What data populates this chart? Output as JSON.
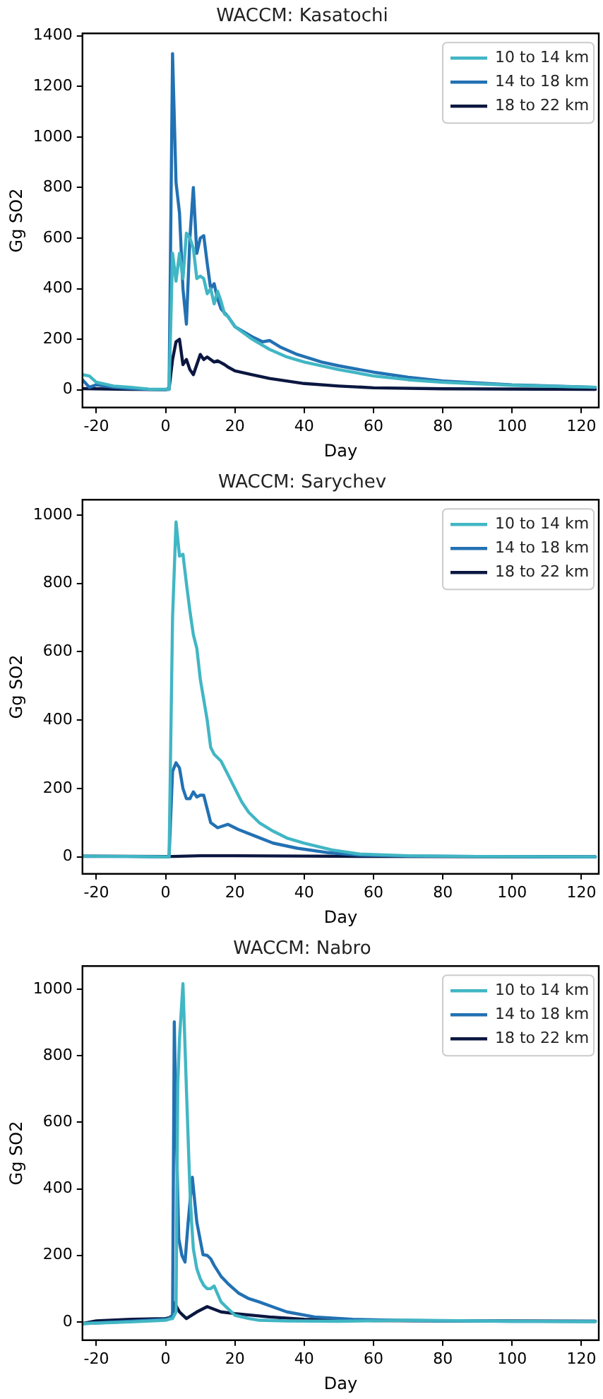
{
  "chart_data": [
    {
      "type": "line",
      "title": "WACCM: Kasatochi",
      "xlabel": "Day",
      "ylabel": "Gg SO2",
      "xlim": [
        -24,
        125
      ],
      "xticks": [
        -20,
        0,
        20,
        40,
        60,
        80,
        100,
        120
      ],
      "ylim": [
        -70,
        1410
      ],
      "yticks": [
        0,
        200,
        400,
        600,
        800,
        1000,
        1200,
        1400
      ],
      "legend": "top right",
      "marker": "none",
      "line_style": "solid",
      "series": [
        {
          "name": "10 to 14 km",
          "color": "#41b6c4",
          "x": [
            -24,
            -22,
            -20,
            -15,
            -10,
            -5,
            0,
            1,
            2,
            3,
            4,
            5,
            6,
            7,
            8,
            9,
            10,
            11,
            12,
            13,
            14,
            15,
            16,
            17,
            18,
            20,
            25,
            30,
            35,
            40,
            50,
            60,
            70,
            80,
            100,
            124
          ],
          "values": [
            60,
            55,
            30,
            15,
            10,
            3,
            2,
            2,
            540,
            430,
            540,
            440,
            620,
            600,
            560,
            440,
            450,
            440,
            380,
            400,
            340,
            390,
            350,
            300,
            290,
            250,
            200,
            160,
            130,
            110,
            80,
            55,
            40,
            30,
            18,
            10
          ]
        },
        {
          "name": "14 to 18 km",
          "color": "#2271b3",
          "x": [
            -24,
            -22,
            -20,
            -15,
            -10,
            -5,
            0,
            1,
            2,
            3,
            4,
            5,
            6,
            7,
            8,
            9,
            10,
            11,
            12,
            13,
            14,
            15,
            16,
            18,
            20,
            25,
            28,
            30,
            33,
            38,
            45,
            50,
            60,
            70,
            80,
            100,
            124
          ],
          "values": [
            40,
            10,
            20,
            10,
            5,
            2,
            1,
            2,
            1330,
            820,
            700,
            400,
            260,
            600,
            800,
            540,
            600,
            610,
            500,
            400,
            420,
            360,
            320,
            290,
            250,
            210,
            190,
            195,
            170,
            140,
            110,
            95,
            70,
            50,
            35,
            20,
            10
          ]
        },
        {
          "name": "18 to 22 km",
          "color": "#0b1740",
          "x": [
            -24,
            -10,
            0,
            1,
            2,
            3,
            4,
            5,
            6,
            7,
            8,
            9,
            10,
            11,
            12,
            14,
            15,
            17,
            18,
            20,
            25,
            30,
            40,
            50,
            60,
            80,
            124
          ],
          "values": [
            5,
            2,
            1,
            5,
            120,
            190,
            200,
            100,
            120,
            80,
            60,
            100,
            140,
            120,
            130,
            110,
            115,
            100,
            90,
            75,
            60,
            45,
            25,
            15,
            8,
            4,
            2
          ]
        }
      ]
    },
    {
      "type": "line",
      "title": "WACCM: Sarychev",
      "xlabel": "Day",
      "ylabel": "Gg SO2",
      "xlim": [
        -24,
        125
      ],
      "xticks": [
        -20,
        0,
        20,
        40,
        60,
        80,
        100,
        120
      ],
      "ylim": [
        -50,
        1045
      ],
      "yticks": [
        0,
        200,
        400,
        600,
        800,
        1000
      ],
      "legend": "top right",
      "marker": "none",
      "line_style": "solid",
      "series": [
        {
          "name": "10 to 14 km",
          "color": "#41b6c4",
          "x": [
            -24,
            -10,
            0,
            1,
            2,
            3,
            4,
            5,
            6,
            7,
            8,
            9,
            10,
            11,
            12,
            13,
            14,
            16,
            18,
            20,
            22,
            24,
            27,
            31,
            35,
            40,
            48,
            56,
            70,
            90,
            124
          ],
          "values": [
            2,
            1,
            0,
            0,
            700,
            980,
            880,
            885,
            800,
            720,
            650,
            610,
            520,
            460,
            400,
            320,
            300,
            280,
            240,
            200,
            160,
            130,
            100,
            75,
            55,
            40,
            20,
            8,
            3,
            1,
            0
          ]
        },
        {
          "name": "14 to 18 km",
          "color": "#2271b3",
          "x": [
            -24,
            -10,
            0,
            1,
            2,
            3,
            4,
            5,
            6,
            7,
            8,
            9,
            10,
            11,
            12,
            13,
            15,
            18,
            21,
            26,
            31,
            38,
            47,
            56,
            70,
            90,
            124
          ],
          "values": [
            1,
            1,
            0,
            0,
            250,
            275,
            260,
            200,
            170,
            170,
            190,
            175,
            180,
            180,
            140,
            100,
            85,
            95,
            80,
            60,
            40,
            25,
            12,
            5,
            2,
            1,
            0
          ]
        },
        {
          "name": "18 to 22 km",
          "color": "#0b1740",
          "x": [
            -24,
            0,
            2,
            10,
            20,
            40,
            60,
            124
          ],
          "values": [
            2,
            1,
            1,
            3,
            3,
            2,
            1,
            0
          ]
        }
      ]
    },
    {
      "type": "line",
      "title": "WACCM: Nabro",
      "xlabel": "Day",
      "ylabel": "Gg SO2",
      "xlim": [
        -24,
        125
      ],
      "xticks": [
        -20,
        0,
        20,
        40,
        60,
        80,
        100,
        120
      ],
      "ylim": [
        -55,
        1070
      ],
      "yticks": [
        0,
        200,
        400,
        600,
        800,
        1000
      ],
      "legend": "top right",
      "marker": "none",
      "line_style": "solid",
      "series": [
        {
          "name": "10 to 14 km",
          "color": "#41b6c4",
          "x": [
            -24,
            -10,
            0,
            1,
            2,
            3,
            3.5,
            4,
            5,
            6,
            7,
            7.5,
            8,
            9,
            10,
            11,
            12,
            13,
            14,
            16,
            18,
            20,
            24,
            27,
            35,
            50,
            70,
            100,
            124
          ],
          "values": [
            -5,
            0,
            5,
            8,
            10,
            30,
            714,
            850,
            1017,
            700,
            400,
            300,
            220,
            160,
            130,
            110,
            100,
            100,
            108,
            60,
            40,
            20,
            10,
            5,
            3,
            2,
            5,
            2,
            1
          ]
        },
        {
          "name": "14 to 18 km",
          "color": "#2271b3",
          "x": [
            -24,
            -10,
            0,
            1,
            2,
            2.5,
            3,
            3.8,
            4.7,
            5.6,
            6.5,
            7.7,
            9,
            10.8,
            12,
            13,
            14,
            16,
            18,
            21,
            24,
            27,
            31,
            35,
            43,
            54,
            70,
            100,
            124
          ],
          "values": [
            -5,
            2,
            8,
            10,
            20,
            902,
            600,
            250,
            200,
            180,
            300,
            435,
            300,
            202,
            200,
            190,
            170,
            137,
            115,
            87,
            70,
            60,
            45,
            30,
            15,
            8,
            4,
            2,
            2
          ]
        },
        {
          "name": "18 to 22 km",
          "color": "#0b1740",
          "x": [
            -24,
            -20,
            -10,
            0,
            1,
            2,
            2.5,
            4,
            6,
            9,
            12,
            16,
            20,
            30,
            40,
            60,
            124
          ],
          "values": [
            -5,
            3,
            8,
            10,
            12,
            20,
            58,
            30,
            10,
            30,
            46,
            30,
            25,
            15,
            8,
            4,
            2
          ]
        }
      ]
    }
  ]
}
